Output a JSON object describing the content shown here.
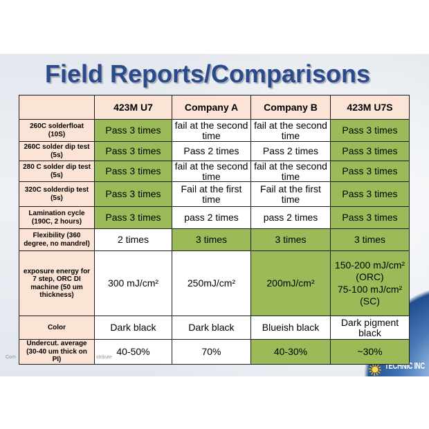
{
  "title": "Field Reports/Comparisons",
  "colors": {
    "title": "#2b4a8b",
    "header_bg": "#fbe4d5",
    "highlight_bg": "#9bbb59",
    "cell_bg": "#ffffff",
    "border": "#1a1a1a",
    "logo_text": "#ffffff"
  },
  "table": {
    "columns": [
      "423M U7",
      "Company A",
      "Company B",
      "423M U7S"
    ],
    "rows": [
      {
        "label": "260C solderfloat\n(10S)",
        "cells": [
          {
            "text": "Pass 3 times",
            "highlight": true
          },
          {
            "text": "fail at the second\ntime",
            "highlight": false
          },
          {
            "text": "fail at the second\ntime",
            "highlight": false
          },
          {
            "text": "Pass 3 times",
            "highlight": true
          }
        ]
      },
      {
        "label": "260C solder dip test\n(5s)",
        "cells": [
          {
            "text": "Pass 3 times",
            "highlight": true
          },
          {
            "text": "Pass 2 times",
            "highlight": false
          },
          {
            "text": "Pass 2 times",
            "highlight": false
          },
          {
            "text": "Pass 3 times",
            "highlight": true
          }
        ]
      },
      {
        "label": "280 C solder dip test\n(5s)",
        "cells": [
          {
            "text": "Pass 3 times",
            "highlight": true
          },
          {
            "text": "fail at the second\ntime",
            "highlight": false
          },
          {
            "text": "fail at the second\ntime",
            "highlight": false
          },
          {
            "text": "Pass 3 times",
            "highlight": true
          }
        ]
      },
      {
        "label": "320C solderdip test\n(5s)",
        "cells": [
          {
            "text": "Pass 3 times",
            "highlight": true
          },
          {
            "text": "Fail at the first\ntime",
            "highlight": false
          },
          {
            "text": "Fail at the first\ntime",
            "highlight": false
          },
          {
            "text": "Pass 3 times",
            "highlight": true
          }
        ]
      },
      {
        "label": "Lamination cycle\n(190C, 2 hours)",
        "cells": [
          {
            "text": "Pass 3 times",
            "highlight": true
          },
          {
            "text": "pass 2 times",
            "highlight": false
          },
          {
            "text": "pass 2 times",
            "highlight": false
          },
          {
            "text": "Pass 3 times",
            "highlight": true
          }
        ]
      },
      {
        "label": "Flexibility (360\ndegree, no mandrel)",
        "cells": [
          {
            "text": "2 times",
            "highlight": false
          },
          {
            "text": "3 times",
            "highlight": true
          },
          {
            "text": "3 times",
            "highlight": true
          },
          {
            "text": "3 times",
            "highlight": true
          }
        ]
      },
      {
        "label": "exposure energy for\n7 step, ORC DI\nmachine (50 um\nthickness)",
        "cells": [
          {
            "text": "300 mJ/cm²",
            "highlight": false
          },
          {
            "text": "250mJ/cm²",
            "highlight": false
          },
          {
            "text": "200mJ/cm²",
            "highlight": true
          },
          {
            "text": "150-200 mJ/cm²\n(ORC)\n75-100 mJ/cm²\n(SC)",
            "highlight": true
          }
        ]
      },
      {
        "label": "Color",
        "cells": [
          {
            "text": "Dark black",
            "highlight": false
          },
          {
            "text": "Dark black",
            "highlight": false
          },
          {
            "text": "Blueish black",
            "highlight": false
          },
          {
            "text": "Dark pigment\nblack",
            "highlight": false
          }
        ]
      },
      {
        "label": "Undercut. average\n(30-40 um thick on\nPI)",
        "cells": [
          {
            "text": "40-50%",
            "highlight": false
          },
          {
            "text": "70%",
            "highlight": false
          },
          {
            "text": "40-30%",
            "highlight": true
          },
          {
            "text": "~30%",
            "highlight": true
          }
        ]
      }
    ]
  },
  "footer": {
    "left_fragment": "Com",
    "right_fragment": "stribute"
  },
  "logo": {
    "icon": "sun-icon",
    "text": "TECHNIC INC"
  }
}
